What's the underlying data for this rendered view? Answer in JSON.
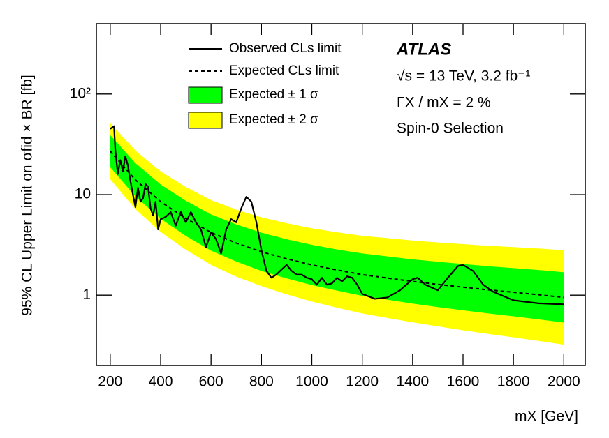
{
  "chart_data": {
    "type": "line",
    "xlabel": "mX [GeV]",
    "ylabel": "95% CL Upper Limit on σfid × BR [fb]",
    "annotations": [
      "ATLAS",
      "√s = 13 TeV, 3.2 fb⁻¹",
      "ΓX / mX = 2 %",
      "Spin-0 Selection"
    ],
    "log_y": true,
    "xlim": [
      145,
      2085
    ],
    "ylim": [
      0.2,
      500
    ],
    "xticks": [
      200,
      400,
      600,
      800,
      1000,
      1200,
      1400,
      1600,
      1800,
      2000
    ],
    "yticks": [
      1,
      10,
      {
        "value": 100,
        "label": "10²"
      }
    ],
    "x": [
      200,
      300,
      400,
      500,
      600,
      700,
      800,
      900,
      1000,
      1100,
      1200,
      1300,
      1400,
      1500,
      1600,
      1700,
      1800,
      1900,
      2000
    ],
    "series": [
      {
        "name": "Observed CLs limit",
        "color": "#000000",
        "style": "solid",
        "x": [
          200,
          215,
          220,
          230,
          240,
          250,
          260,
          270,
          280,
          290,
          300,
          310,
          320,
          330,
          340,
          350,
          360,
          370,
          380,
          390,
          400,
          420,
          440,
          460,
          480,
          500,
          520,
          540,
          560,
          580,
          600,
          620,
          640,
          660,
          680,
          700,
          720,
          740,
          760,
          780,
          800,
          820,
          840,
          860,
          880,
          900,
          920,
          940,
          960,
          980,
          1000,
          1020,
          1040,
          1060,
          1080,
          1100,
          1120,
          1140,
          1160,
          1180,
          1200,
          1250,
          1300,
          1350,
          1400,
          1420,
          1450,
          1500,
          1540,
          1580,
          1600,
          1640,
          1680,
          1720,
          1800,
          1900,
          2000
        ],
        "values": [
          45,
          48,
          28,
          16,
          22,
          17,
          24,
          19.5,
          13.7,
          10,
          7.5,
          11.7,
          8.5,
          9.2,
          12.7,
          12,
          7.3,
          6.2,
          8.5,
          4.5,
          5.7,
          6.0,
          6.7,
          4.9,
          6.7,
          5.3,
          6.7,
          5.3,
          4.5,
          3.0,
          4.2,
          3.6,
          2.6,
          4.5,
          5.7,
          5.3,
          7.3,
          9.5,
          8.5,
          5.3,
          2.8,
          1.74,
          1.49,
          1.61,
          1.8,
          2.0,
          1.74,
          1.6,
          1.6,
          1.49,
          1.44,
          1.27,
          1.49,
          1.27,
          1.31,
          1.49,
          1.37,
          1.54,
          1.49,
          1.27,
          1.03,
          0.92,
          0.95,
          1.12,
          1.44,
          1.49,
          1.27,
          1.12,
          1.49,
          1.95,
          2.0,
          1.74,
          1.27,
          1.08,
          0.89,
          0.83,
          0.81
        ]
      },
      {
        "name": "Expected CLs limit",
        "color": "#000000",
        "style": "dashed",
        "values": [
          27,
          14,
          8.5,
          5.8,
          4.2,
          3.3,
          2.7,
          2.3,
          2.0,
          1.78,
          1.6,
          1.48,
          1.37,
          1.28,
          1.2,
          1.13,
          1.07,
          1.01,
          0.95
        ]
      },
      {
        "name": "Expected ± 1 σ",
        "color": "#00ff00",
        "style": "band",
        "values": [
          18.7,
          9.58,
          5.75,
          3.88,
          2.77,
          2.16,
          1.74,
          1.47,
          1.26,
          1.11,
          0.986,
          0.902,
          0.825,
          0.762,
          0.707,
          0.658,
          0.616,
          0.575,
          0.534
        ],
        "upper": [
          39.0,
          20.5,
          12.6,
          8.68,
          6.36,
          5.05,
          4.18,
          3.6,
          3.17,
          2.85,
          2.6,
          2.43,
          2.27,
          2.15,
          2.04,
          1.94,
          1.86,
          1.78,
          1.69
        ]
      },
      {
        "name": "Expected ± 2 σ",
        "color": "#ffff00",
        "style": "band",
        "values": [
          14.2,
          7.16,
          4.25,
          2.83,
          2.0,
          1.53,
          1.23,
          1.02,
          0.866,
          0.751,
          0.658,
          0.594,
          0.537,
          0.49,
          0.448,
          0.412,
          0.381,
          0.351,
          0.322
        ],
        "upper": [
          51.4,
          27.4,
          17.0,
          11.9,
          8.82,
          7.1,
          5.94,
          5.2,
          4.62,
          4.22,
          3.89,
          3.69,
          3.49,
          3.34,
          3.22,
          3.1,
          3.01,
          2.91,
          2.8
        ]
      }
    ]
  }
}
